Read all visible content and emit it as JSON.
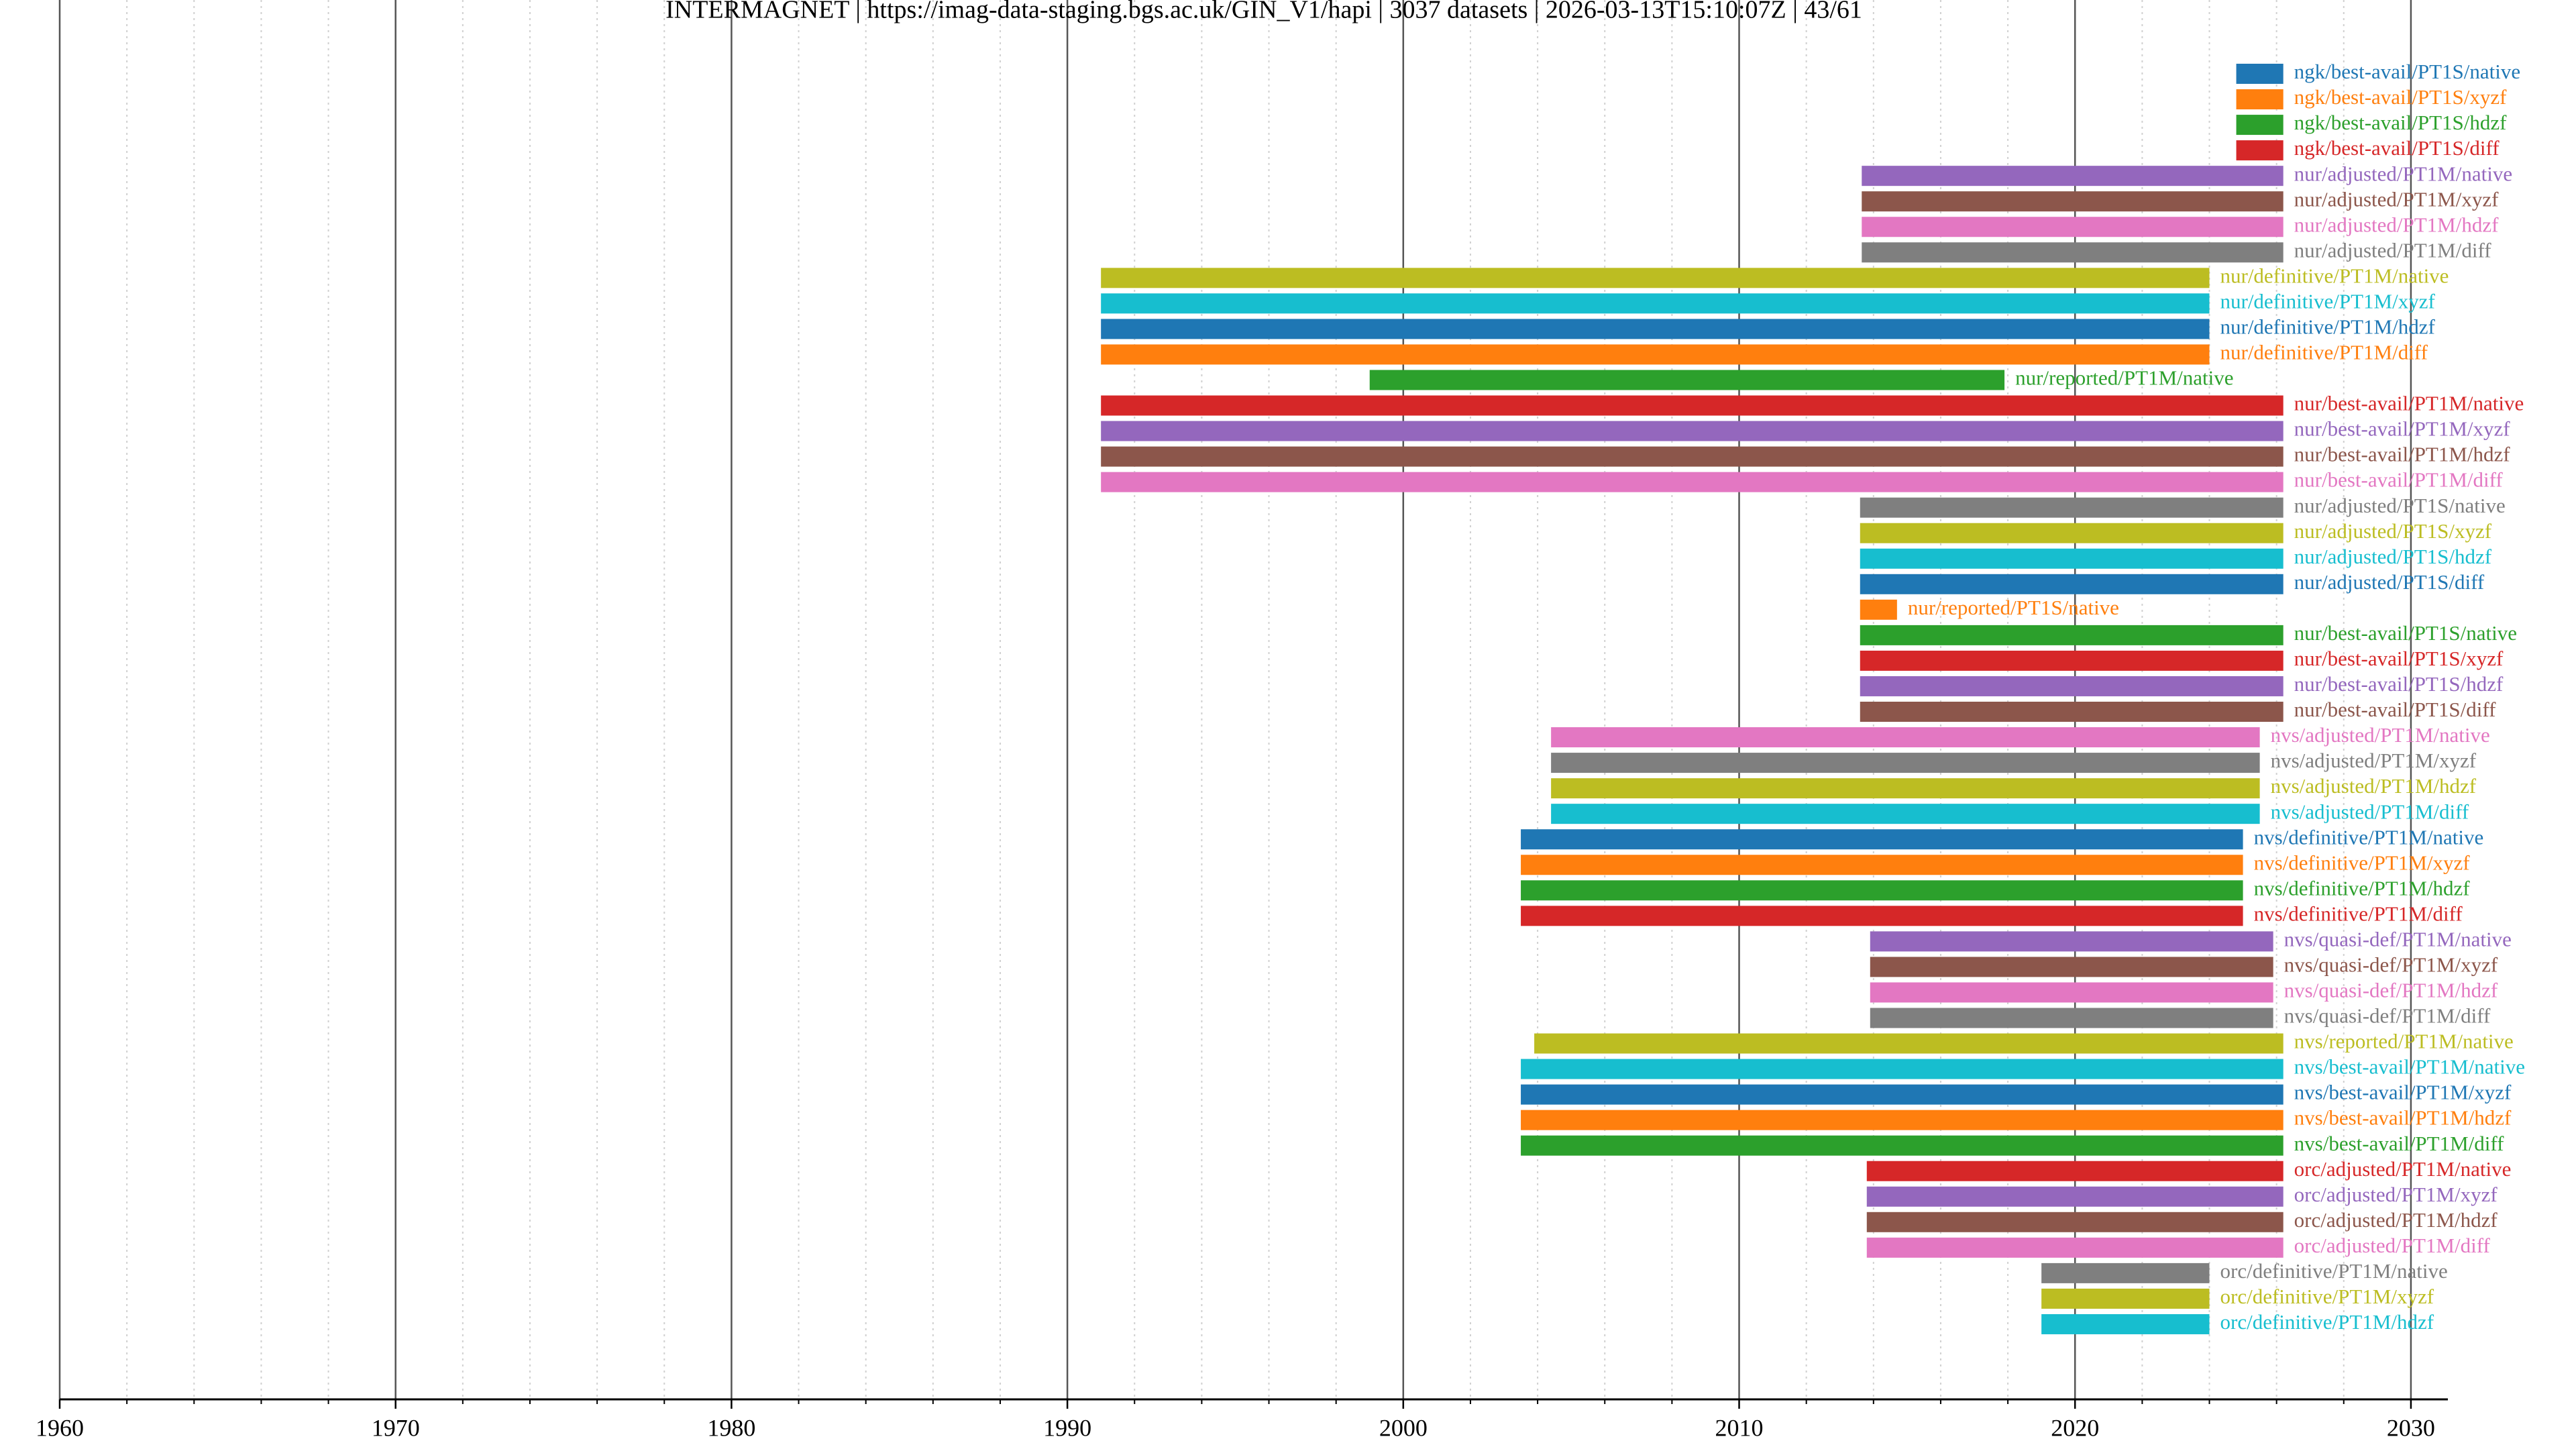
{
  "chart_data": {
    "type": "timeline",
    "title": "INTERMAGNET | https://imag-data-staging.bgs.ac.uk/GIN_V1/hapi | 3037 datasets | 2026-03-13T15:10:07Z | 43/61",
    "colors": [
      "#1f77b4",
      "#ff7f0e",
      "#2ca02c",
      "#d62728",
      "#9467bd",
      "#8c564b",
      "#e377c2",
      "#7f7f7f",
      "#bcbd22",
      "#17becf"
    ],
    "xlim": [
      1960,
      2031.1
    ],
    "xticks": [
      1960,
      1970,
      1980,
      1990,
      2000,
      2010,
      2020,
      2030
    ],
    "xminor_ticks": [
      1962,
      1964,
      1966,
      1968,
      1972,
      1974,
      1976,
      1978,
      1982,
      1984,
      1986,
      1988,
      1992,
      1994,
      1996,
      1998,
      2002,
      2004,
      2006,
      2008,
      2012,
      2014,
      2016,
      2018,
      2022,
      2024,
      2026,
      2028
    ],
    "categories": [
      "ngk/best-avail/PT1S/native",
      "ngk/best-avail/PT1S/xyzf",
      "ngk/best-avail/PT1S/hdzf",
      "ngk/best-avail/PT1S/diff",
      "nur/adjusted/PT1M/native",
      "nur/adjusted/PT1M/xyzf",
      "nur/adjusted/PT1M/hdzf",
      "nur/adjusted/PT1M/diff",
      "nur/definitive/PT1M/native",
      "nur/definitive/PT1M/xyzf",
      "nur/definitive/PT1M/hdzf",
      "nur/definitive/PT1M/diff",
      "nur/reported/PT1M/native",
      "nur/best-avail/PT1M/native",
      "nur/best-avail/PT1M/xyzf",
      "nur/best-avail/PT1M/hdzf",
      "nur/best-avail/PT1M/diff",
      "nur/adjusted/PT1S/native",
      "nur/adjusted/PT1S/xyzf",
      "nur/adjusted/PT1S/hdzf",
      "nur/adjusted/PT1S/diff",
      "nur/reported/PT1S/native",
      "nur/best-avail/PT1S/native",
      "nur/best-avail/PT1S/xyzf",
      "nur/best-avail/PT1S/hdzf",
      "nur/best-avail/PT1S/diff",
      "nvs/adjusted/PT1M/native",
      "nvs/adjusted/PT1M/xyzf",
      "nvs/adjusted/PT1M/hdzf",
      "nvs/adjusted/PT1M/diff",
      "nvs/definitive/PT1M/native",
      "nvs/definitive/PT1M/xyzf",
      "nvs/definitive/PT1M/hdzf",
      "nvs/definitive/PT1M/diff",
      "nvs/quasi-def/PT1M/native",
      "nvs/quasi-def/PT1M/xyzf",
      "nvs/quasi-def/PT1M/hdzf",
      "nvs/quasi-def/PT1M/diff",
      "nvs/reported/PT1M/native",
      "nvs/best-avail/PT1M/native",
      "nvs/best-avail/PT1M/xyzf",
      "nvs/best-avail/PT1M/hdzf",
      "nvs/best-avail/PT1M/diff",
      "orc/adjusted/PT1M/native",
      "orc/adjusted/PT1M/xyzf",
      "orc/adjusted/PT1M/hdzf",
      "orc/adjusted/PT1M/diff",
      "orc/definitive/PT1M/native",
      "orc/definitive/PT1M/xyzf",
      "orc/definitive/PT1M/hdzf"
    ],
    "start": [
      2024.8,
      2024.8,
      2024.8,
      2024.8,
      2013.65,
      2013.65,
      2013.65,
      2013.65,
      1991.0,
      1991.0,
      1991.0,
      1991.0,
      1999.0,
      1991.0,
      1991.0,
      1991.0,
      1991.0,
      2013.6,
      2013.6,
      2013.6,
      2013.6,
      2013.6,
      2013.6,
      2013.6,
      2013.6,
      2013.6,
      2004.4,
      2004.4,
      2004.4,
      2004.4,
      2003.5,
      2003.5,
      2003.5,
      2003.5,
      2013.9,
      2013.9,
      2013.9,
      2013.9,
      2003.9,
      2003.5,
      2003.5,
      2003.5,
      2003.5,
      2013.8,
      2013.8,
      2013.8,
      2013.8,
      2019.0,
      2019.0,
      2019.0
    ],
    "end": [
      2026.2,
      2026.2,
      2026.2,
      2026.2,
      2026.2,
      2026.2,
      2026.2,
      2026.2,
      2024.0,
      2024.0,
      2024.0,
      2024.0,
      2017.9,
      2026.2,
      2026.2,
      2026.2,
      2026.2,
      2026.2,
      2026.2,
      2026.2,
      2026.2,
      2014.7,
      2026.2,
      2026.2,
      2026.2,
      2026.2,
      2025.5,
      2025.5,
      2025.5,
      2025.5,
      2025.0,
      2025.0,
      2025.0,
      2025.0,
      2025.9,
      2025.9,
      2025.9,
      2025.9,
      2026.2,
      2026.2,
      2026.2,
      2026.2,
      2026.2,
      2026.2,
      2026.2,
      2026.2,
      2026.2,
      2024.0,
      2024.0,
      2024.0
    ]
  }
}
